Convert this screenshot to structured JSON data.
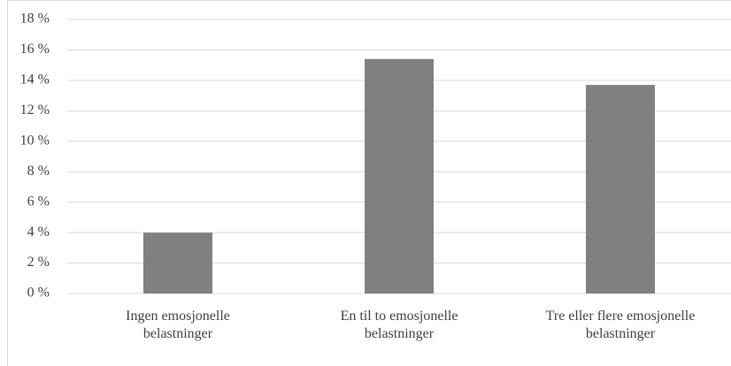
{
  "chart_data": {
    "type": "bar",
    "categories": [
      "Ingen emosjonelle belastninger",
      "En til to emosjonelle belastninger",
      "Tre eller flere emosjonelle belastninger"
    ],
    "values": [
      4.0,
      15.4,
      13.7
    ],
    "color": "#808080",
    "ylim": [
      0,
      18
    ],
    "yticks": [
      {
        "value": 0,
        "label": "0 %"
      },
      {
        "value": 2,
        "label": "2 %"
      },
      {
        "value": 4,
        "label": "4 %"
      },
      {
        "value": 6,
        "label": "6 %"
      },
      {
        "value": 8,
        "label": "8 %"
      },
      {
        "value": 10,
        "label": "10 %"
      },
      {
        "value": 12,
        "label": "12 %"
      },
      {
        "value": 14,
        "label": "14 %"
      },
      {
        "value": 16,
        "label": "16 %"
      },
      {
        "value": 18,
        "label": "18 %"
      }
    ],
    "grid": true
  }
}
